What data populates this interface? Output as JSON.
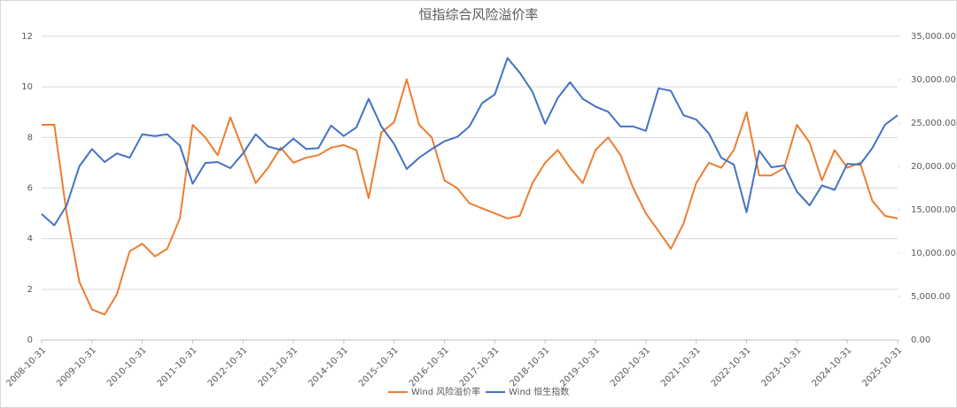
{
  "chart_data": {
    "type": "line",
    "title": "恒指综合风险溢价率",
    "x": [
      "2008-10-31",
      "2009-01-31",
      "2009-04-30",
      "2009-07-31",
      "2009-10-31",
      "2010-01-31",
      "2010-04-30",
      "2010-07-31",
      "2010-10-31",
      "2011-01-31",
      "2011-04-30",
      "2011-07-31",
      "2011-10-31",
      "2012-01-31",
      "2012-04-30",
      "2012-07-31",
      "2012-10-31",
      "2013-01-31",
      "2013-04-30",
      "2013-07-31",
      "2013-10-31",
      "2014-01-31",
      "2014-04-30",
      "2014-07-31",
      "2014-10-31",
      "2015-01-31",
      "2015-04-30",
      "2015-07-31",
      "2015-10-31",
      "2016-01-31",
      "2016-04-30",
      "2016-07-31",
      "2016-10-31",
      "2017-01-31",
      "2017-04-30",
      "2017-07-31",
      "2017-10-31",
      "2018-01-31",
      "2018-04-30",
      "2018-07-31",
      "2018-10-31",
      "2019-01-31",
      "2019-04-30",
      "2019-07-31",
      "2019-10-31",
      "2020-01-31",
      "2020-04-30",
      "2020-07-31",
      "2020-10-31",
      "2021-01-31",
      "2021-04-30",
      "2021-07-31",
      "2021-10-31",
      "2022-01-31",
      "2022-04-30",
      "2022-07-31",
      "2022-10-31",
      "2023-01-31",
      "2023-04-30",
      "2023-07-31",
      "2023-10-31",
      "2024-01-31",
      "2024-04-30",
      "2024-07-31",
      "2024-10-31",
      "2025-01-31",
      "2025-04-30",
      "2025-07-31",
      "2025-10-31"
    ],
    "series": [
      {
        "name": "Wind 风险溢价率",
        "color": "#ED7D31",
        "axis": "y",
        "values": [
          8.5,
          8.5,
          5,
          2.3,
          1.2,
          1.0,
          1.8,
          3.5,
          3.8,
          3.3,
          3.6,
          4.8,
          8.5,
          8.0,
          7.3,
          8.8,
          7.5,
          6.2,
          6.8,
          7.6,
          7.0,
          7.2,
          7.3,
          7.6,
          7.7,
          7.5,
          5.6,
          8.2,
          8.6,
          10.3,
          8.5,
          8.0,
          6.3,
          6.0,
          5.4,
          5.2,
          5.0,
          4.8,
          4.9,
          6.2,
          7.0,
          7.5,
          6.8,
          6.2,
          7.5,
          8.0,
          7.3,
          6.0,
          5.0,
          4.3,
          3.6,
          4.6,
          6.2,
          7.0,
          6.8,
          7.5,
          9.0,
          6.5,
          6.5,
          6.8,
          8.5,
          7.8,
          6.3,
          7.5,
          6.8,
          7.0,
          5.5,
          4.9,
          4.8
        ]
      },
      {
        "name": "Wind 恒生指数",
        "color": "#4472C4",
        "axis": "y2",
        "values": [
          14500,
          13200,
          15500,
          20000,
          22000,
          20500,
          21500,
          21000,
          23700,
          23500,
          23700,
          22400,
          18000,
          20400,
          20500,
          19800,
          21500,
          23700,
          22300,
          21900,
          23200,
          22000,
          22100,
          24700,
          23500,
          24500,
          27800,
          24600,
          22600,
          19700,
          21000,
          22000,
          22900,
          23400,
          24600,
          27300,
          28300,
          32500,
          30800,
          28600,
          24900,
          27900,
          29700,
          27800,
          26900,
          26300,
          24600,
          24600,
          24100,
          29000,
          28700,
          25900,
          25400,
          23800,
          21000,
          20200,
          14700,
          21800,
          19900,
          20100,
          17100,
          15500,
          17800,
          17300,
          20300,
          20200,
          22100,
          24800,
          25900
        ]
      }
    ],
    "xticks": [
      "2008-10-31",
      "2009-10-31",
      "2010-10-31",
      "2011-10-31",
      "2012-10-31",
      "2013-10-31",
      "2014-10-31",
      "2015-10-31",
      "2016-10-31",
      "2017-10-31",
      "2018-10-31",
      "2019-10-31",
      "2020-10-31",
      "2021-10-31",
      "2022-10-31",
      "2023-10-31",
      "2024-10-31",
      "2025-10-31"
    ],
    "ylim": [
      0,
      12
    ],
    "yticks": [
      0,
      2,
      4,
      6,
      8,
      10,
      12
    ],
    "y2lim": [
      0,
      35000
    ],
    "y2ticks": [
      {
        "value": 0,
        "label": "0.00"
      },
      {
        "value": 5000,
        "label": "5,000.00"
      },
      {
        "value": 10000,
        "label": "10,000.00"
      },
      {
        "value": 15000,
        "label": "15,000.00"
      },
      {
        "value": 20000,
        "label": "20,000.00"
      },
      {
        "value": 25000,
        "label": "25,000.00"
      },
      {
        "value": 30000,
        "label": "30,000.00"
      },
      {
        "value": 35000,
        "label": "35,000.00"
      }
    ],
    "grid": true,
    "legend": "bottom"
  }
}
